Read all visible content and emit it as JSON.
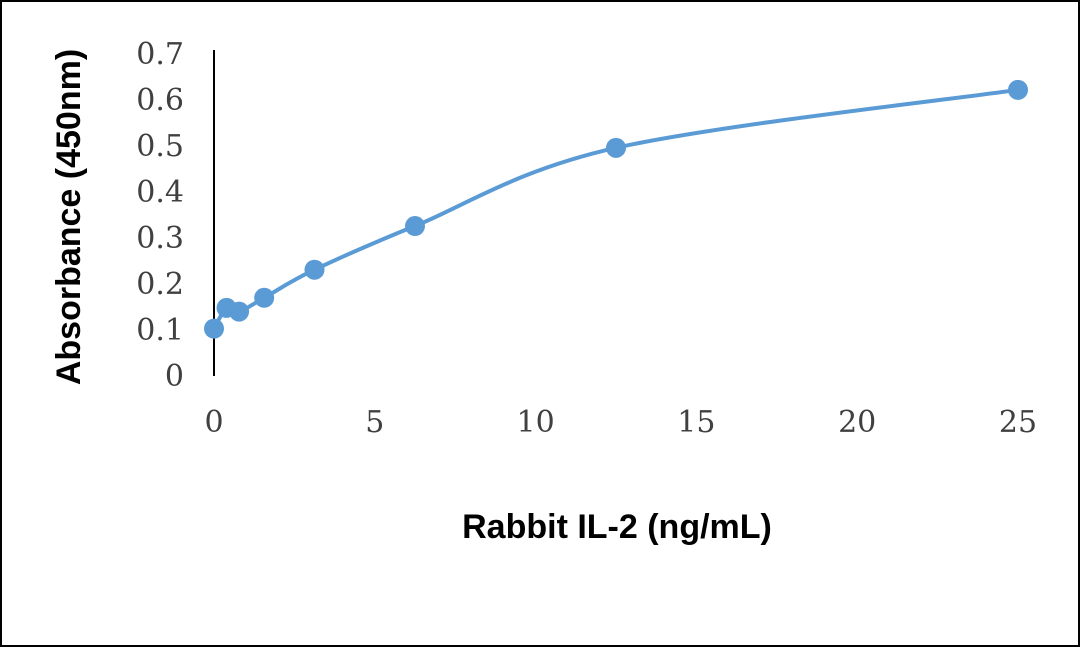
{
  "chart_data": {
    "type": "line",
    "title": "",
    "xlabel": "Rabbit IL-2 (ng/mL)",
    "ylabel": "Absorbance (450nm)",
    "xlim": [
      0,
      25
    ],
    "ylim": [
      0,
      0.7
    ],
    "x_ticks": [
      "0",
      "5",
      "10",
      "15",
      "20",
      "25"
    ],
    "y_ticks": [
      "0",
      "0.1",
      "0.2",
      "0.3",
      "0.4",
      "0.5",
      "0.6",
      "0.7"
    ],
    "x_tick_values": [
      0,
      5,
      10,
      15,
      20,
      25
    ],
    "y_tick_values": [
      0,
      0.1,
      0.2,
      0.3,
      0.4,
      0.5,
      0.6,
      0.7
    ],
    "grid": false,
    "legend": "none",
    "smooth": true,
    "series": [
      {
        "color": "#5B9BD5",
        "x": [
          0,
          0.39,
          0.78,
          1.56,
          3.125,
          6.25,
          12.5,
          25
        ],
        "y": [
          0.103,
          0.148,
          0.14,
          0.17,
          0.231,
          0.326,
          0.496,
          0.622
        ]
      }
    ]
  }
}
